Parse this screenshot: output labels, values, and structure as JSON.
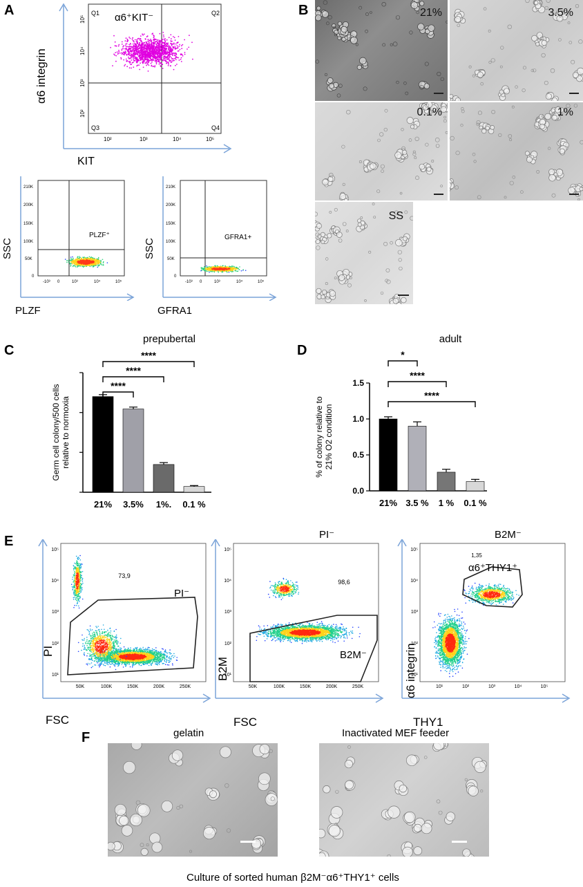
{
  "panels": {
    "A": {
      "letter": "A",
      "main": {
        "y_axis": "α6 integrin",
        "x_axis": "KIT",
        "gate_label": "α6⁺KIT⁻",
        "quadrants": [
          "Q1",
          "Q2",
          "Q3",
          "Q4"
        ],
        "x_ticks": [
          "10²",
          "10³",
          "10⁴",
          "10⁵"
        ],
        "y_ticks": [
          "10²",
          "10³",
          "10⁴",
          "10⁵"
        ],
        "color": "#e000e0"
      },
      "plzf": {
        "y_axis": "SSC",
        "x_axis": "PLZF",
        "gate_label": "PLZF⁺",
        "y_ticks": [
          "210K",
          "200K",
          "150K",
          "100K",
          "50K",
          "0"
        ],
        "x_ticks": [
          "-10³",
          "0",
          "10³",
          "10⁴",
          "10⁵"
        ]
      },
      "gfra1": {
        "y_axis": "SSC",
        "x_axis": "GFRA1",
        "gate_label": "GFRA1+",
        "y_ticks": [
          "210K",
          "200K",
          "150K",
          "100K",
          "50K",
          "0"
        ],
        "x_ticks": [
          "-10³",
          "0",
          "10³",
          "10⁴",
          "10⁵"
        ]
      }
    },
    "B": {
      "letter": "B",
      "images": [
        {
          "label": "21%"
        },
        {
          "label": "3.5%"
        },
        {
          "label": "0.1%"
        },
        {
          "label": "1%"
        },
        {
          "label": "SS"
        }
      ]
    },
    "C": {
      "letter": "C"
    },
    "D": {
      "letter": "D"
    },
    "E": {
      "letter": "E",
      "plot1": {
        "y_axis": "PI",
        "x_axis": "FSC",
        "title": "",
        "gate_label": "PI⁻",
        "gate_pct": "73,9",
        "x_ticks": [
          "50K",
          "100K",
          "150K",
          "200K",
          "250K"
        ],
        "y_ticks": [
          "10⁵",
          "10⁴",
          "10³",
          "10²",
          "10¹"
        ]
      },
      "plot2": {
        "y_axis": "B2M",
        "x_axis": "FSC",
        "title": "PI⁻",
        "gate_label": "B2M⁻",
        "gate_pct": "98,6",
        "x_ticks": [
          "50K",
          "100K",
          "150K",
          "200K",
          "250K"
        ],
        "y_ticks": [
          "10⁵",
          "10⁴",
          "10³",
          "10²",
          "10¹"
        ]
      },
      "plot3": {
        "y_axis": "α6 integrin",
        "x_axis": "THY1",
        "title": "B2M⁻",
        "gate_label": "α6⁺THY1⁺",
        "gate_pct": "1,35",
        "x_ticks": [
          "10¹",
          "10²",
          "10³",
          "10⁴",
          "10⁵"
        ],
        "y_ticks": [
          "10⁵",
          "10⁴",
          "10³",
          "10²",
          "10¹"
        ]
      }
    },
    "F": {
      "letter": "F",
      "left_title": "gelatin",
      "right_title": "Inactivated MEF feeder",
      "caption": "Culture of sorted human β2M⁻α6⁺THY1⁺ cells"
    }
  },
  "chart_data": [
    {
      "type": "bar",
      "title": "prepubertal",
      "ylabel": "Germ cell colony/500 cells relative to normoxia",
      "categories": [
        "21%",
        "3.5%",
        "1%.",
        "0.1 %"
      ],
      "values": [
        1.0,
        0.87,
        0.29,
        0.06
      ],
      "errors": [
        0.02,
        0.02,
        0.02,
        0.01
      ],
      "colors": [
        "#000000",
        "#a0a0a8",
        "#6a6a6a",
        "#d8d8d8"
      ],
      "ylim": [
        0,
        1.25
      ],
      "y_ticks_labeled": false,
      "significance": [
        {
          "from": "21%",
          "to": "3.5%",
          "label": "****"
        },
        {
          "from": "21%",
          "to": "1%.",
          "label": "****"
        },
        {
          "from": "21%",
          "to": "0.1 %",
          "label": "****"
        }
      ]
    },
    {
      "type": "bar",
      "title": "adult",
      "ylabel": "% of colony relative to 21% O2 condition",
      "categories": [
        "21%",
        "3.5 %",
        "1 %",
        "0.1 %"
      ],
      "values": [
        1.0,
        0.9,
        0.26,
        0.13
      ],
      "errors": [
        0.03,
        0.06,
        0.04,
        0.03
      ],
      "colors": [
        "#000000",
        "#b0b0b8",
        "#767676",
        "#d8d8d8"
      ],
      "ylim": [
        0,
        1.5
      ],
      "y_ticks": [
        "0.0",
        "0.5",
        "1.0",
        "1.5"
      ],
      "significance": [
        {
          "from": "21%",
          "to": "3.5 %",
          "label": "*"
        },
        {
          "from": "21%",
          "to": "1 %",
          "label": "****"
        },
        {
          "from": "21%",
          "to": "0.1 %",
          "label": "****"
        }
      ]
    }
  ]
}
